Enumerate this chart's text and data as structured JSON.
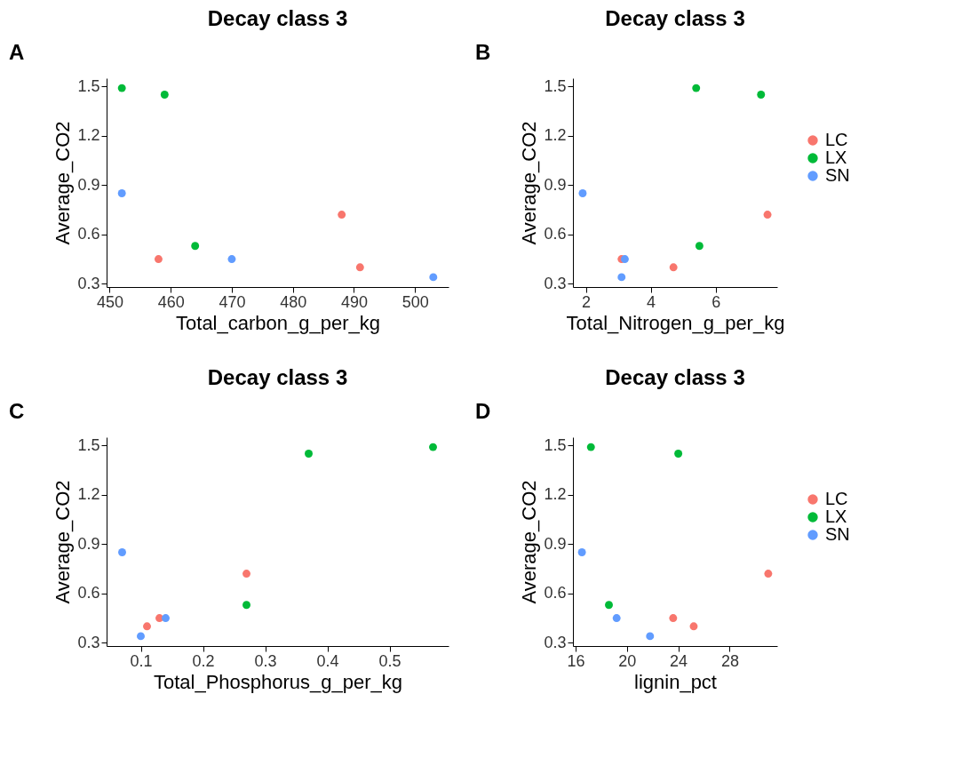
{
  "chart_data": [
    {
      "type": "scatter",
      "title": "Decay class 3",
      "annotations": [
        "A"
      ],
      "xlabel": "Total_carbon_g_per_kg",
      "ylabel": "Average_CO2",
      "xlim": [
        449.5,
        505.5
      ],
      "xticks": [
        450,
        460,
        470,
        480,
        490,
        500
      ],
      "ylim": [
        0.28,
        1.55
      ],
      "yticks": [
        0.3,
        0.6,
        0.9,
        1.2,
        1.5
      ],
      "grid": false,
      "legend": false,
      "marker": "circle",
      "series": [
        {
          "color": "#f8766d",
          "x": [
            488,
            458,
            491
          ],
          "values": [
            0.72,
            0.45,
            0.4
          ]
        },
        {
          "color": "#00ba38",
          "x": [
            452,
            459,
            464
          ],
          "values": [
            1.49,
            1.45,
            0.53
          ]
        },
        {
          "color": "#619cff",
          "x": [
            452,
            470,
            503
          ],
          "values": [
            0.85,
            0.45,
            0.34
          ]
        }
      ]
    },
    {
      "type": "scatter",
      "title": "Decay class 3",
      "annotations": [
        "B"
      ],
      "xlabel": "Total_Nitrogen_g_per_kg",
      "ylabel": "Average_CO2",
      "xlim": [
        1.6,
        7.9
      ],
      "xticks": [
        2,
        4,
        6
      ],
      "ylim": [
        0.28,
        1.55
      ],
      "yticks": [
        0.3,
        0.6,
        0.9,
        1.2,
        1.5
      ],
      "grid": false,
      "legend": "right",
      "marker": "circle",
      "series": [
        {
          "name": "LC",
          "color": "#f8766d",
          "x": [
            7.6,
            3.1,
            4.7
          ],
          "values": [
            0.72,
            0.45,
            0.4
          ]
        },
        {
          "name": "LX",
          "color": "#00ba38",
          "x": [
            5.4,
            7.4,
            5.5
          ],
          "values": [
            1.49,
            1.45,
            0.53
          ]
        },
        {
          "name": "SN",
          "color": "#619cff",
          "x": [
            1.9,
            3.2,
            3.1
          ],
          "values": [
            0.85,
            0.45,
            0.34
          ]
        }
      ]
    },
    {
      "type": "scatter",
      "title": "Decay class 3",
      "annotations": [
        "C"
      ],
      "xlabel": "Total_Phosphorus_g_per_kg",
      "ylabel": "Average_CO2",
      "xlim": [
        0.045,
        0.595
      ],
      "xticks": [
        0.1,
        0.2,
        0.3,
        0.4,
        0.5
      ],
      "ylim": [
        0.28,
        1.55
      ],
      "yticks": [
        0.3,
        0.6,
        0.9,
        1.2,
        1.5
      ],
      "grid": false,
      "legend": false,
      "marker": "circle",
      "series": [
        {
          "color": "#f8766d",
          "x": [
            0.27,
            0.13,
            0.11
          ],
          "values": [
            0.72,
            0.45,
            0.4
          ]
        },
        {
          "color": "#00ba38",
          "x": [
            0.57,
            0.37,
            0.27
          ],
          "values": [
            1.49,
            1.45,
            0.53
          ]
        },
        {
          "color": "#619cff",
          "x": [
            0.07,
            0.14,
            0.1
          ],
          "values": [
            0.85,
            0.45,
            0.34
          ]
        }
      ]
    },
    {
      "type": "scatter",
      "title": "Decay class 3",
      "annotations": [
        "D"
      ],
      "xlabel": "lignin_pct",
      "ylabel": "Average_CO2",
      "xlim": [
        15.8,
        31.7
      ],
      "xticks": [
        16,
        20,
        24,
        28
      ],
      "ylim": [
        0.28,
        1.55
      ],
      "yticks": [
        0.3,
        0.6,
        0.9,
        1.2,
        1.5
      ],
      "grid": false,
      "legend": "right",
      "marker": "circle",
      "series": [
        {
          "name": "LC",
          "color": "#f8766d",
          "x": [
            31.0,
            23.6,
            25.2
          ],
          "values": [
            0.72,
            0.45,
            0.4
          ]
        },
        {
          "name": "LX",
          "color": "#00ba38",
          "x": [
            17.2,
            24.0,
            18.6
          ],
          "values": [
            1.49,
            1.45,
            0.53
          ]
        },
        {
          "name": "SN",
          "color": "#619cff",
          "x": [
            16.5,
            19.2,
            21.8
          ],
          "values": [
            0.85,
            0.45,
            0.34
          ]
        }
      ]
    }
  ]
}
